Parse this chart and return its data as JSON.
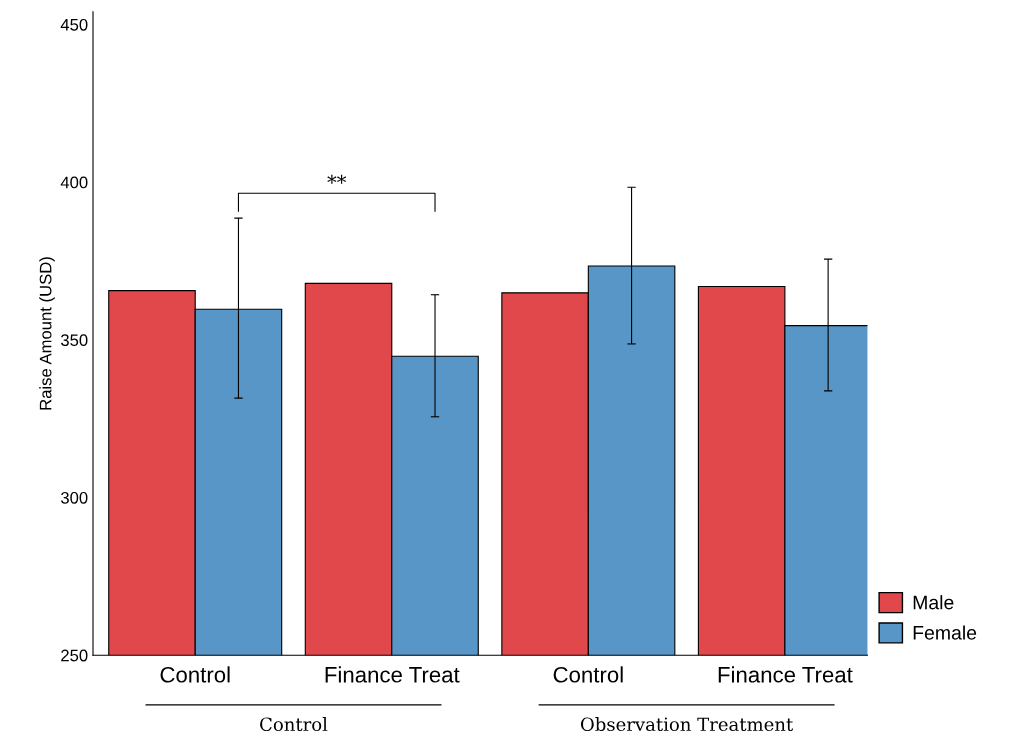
{
  "chart_data": {
    "type": "bar",
    "ylabel": "Raise Amount (USD)",
    "categories": [
      "Control",
      "Finance Treat",
      "Control",
      "Finance Treat"
    ],
    "series": [
      {
        "name": "Male",
        "color": "#e0484b",
        "values": [
          365.6,
          367.9,
          364.9,
          366.9
        ]
      },
      {
        "name": "Female",
        "color": "#5796c6",
        "values": [
          359.7,
          344.8,
          373.4,
          354.5
        ],
        "errors": [
          [
            331.5,
            388.6
          ],
          [
            325.6,
            364.3
          ],
          [
            348.7,
            398.4
          ],
          [
            333.8,
            375.6
          ]
        ]
      }
    ],
    "ylim": [
      250,
      454
    ],
    "yticks": [
      250,
      300,
      350,
      400,
      450
    ],
    "grid": false,
    "legend": "bottom right",
    "annotations": [
      "**",
      "Control",
      "Observation Treatment"
    ]
  }
}
